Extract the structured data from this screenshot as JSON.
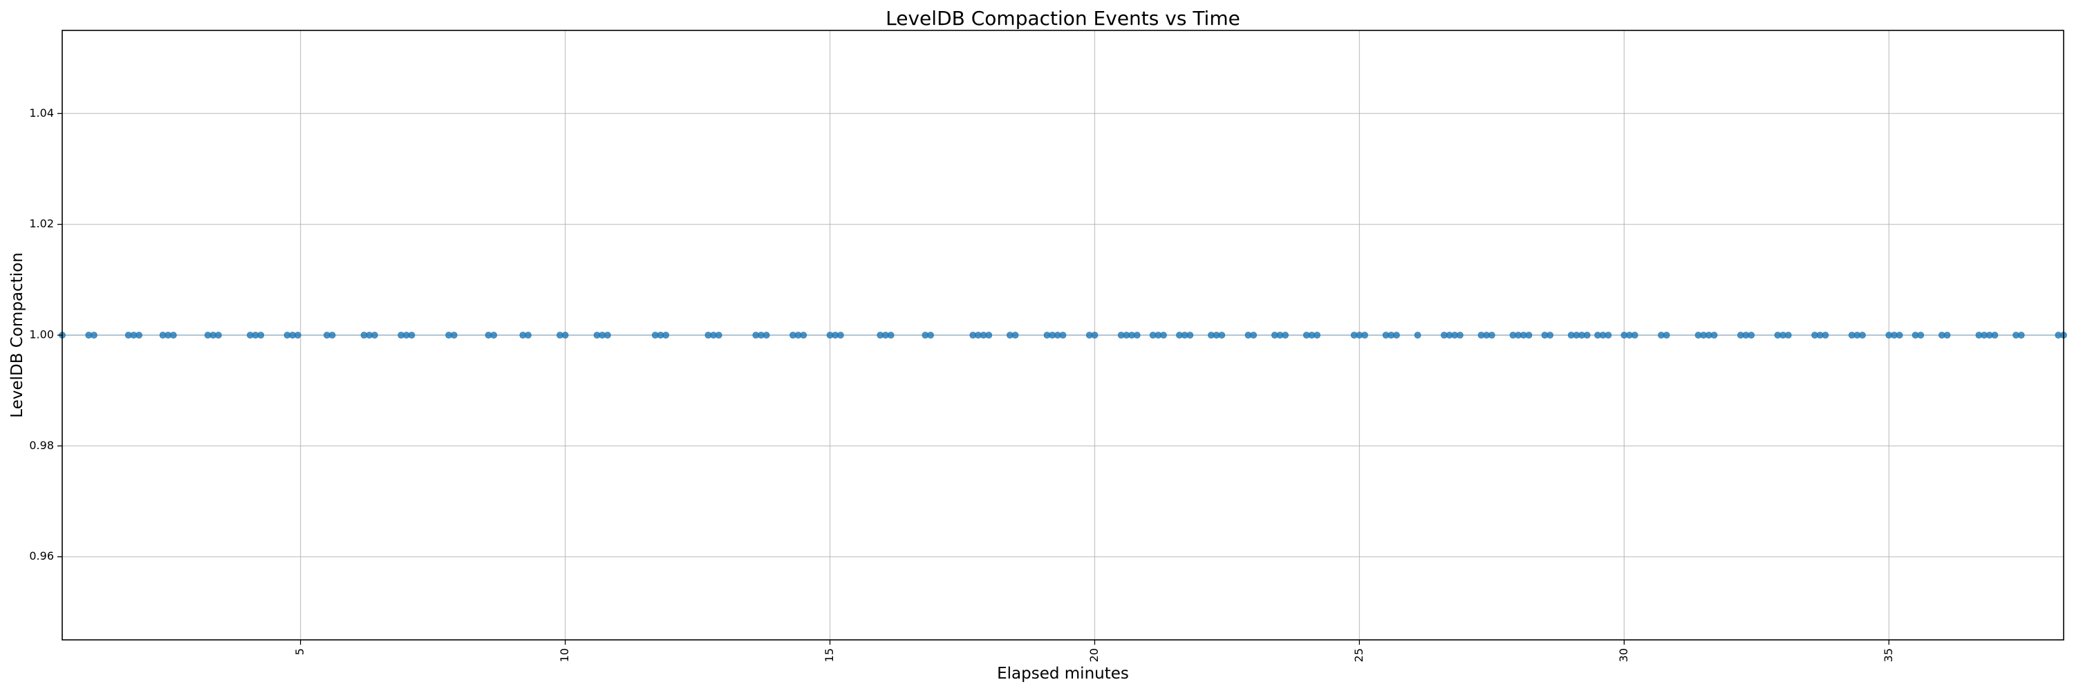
{
  "chart_data": {
    "type": "scatter",
    "title": "LevelDB Compaction Events vs Time",
    "xlabel": "Elapsed minutes",
    "ylabel": "LevelDB Compaction",
    "xlim": [
      0.5,
      38.3
    ],
    "ylim": [
      0.945,
      1.055
    ],
    "x_ticks": [
      5,
      10,
      15,
      20,
      25,
      30,
      35
    ],
    "x_tick_labels": [
      "5",
      "10",
      "15",
      "20",
      "25",
      "30",
      "35"
    ],
    "y_ticks": [
      0.96,
      0.98,
      1.0,
      1.02,
      1.04
    ],
    "y_tick_labels": [
      "0.96",
      "0.98",
      "1.00",
      "1.02",
      "1.04"
    ],
    "grid": true,
    "series": [
      {
        "color": "#1f77b4",
        "y_value": 1.0,
        "x": [
          0.5,
          1.0,
          1.1,
          1.75,
          1.85,
          1.95,
          2.4,
          2.5,
          2.6,
          3.25,
          3.35,
          3.45,
          4.05,
          4.15,
          4.25,
          4.75,
          4.85,
          4.95,
          5.5,
          5.6,
          6.2,
          6.3,
          6.4,
          6.9,
          7.0,
          7.1,
          7.8,
          7.9,
          8.55,
          8.65,
          9.2,
          9.3,
          9.9,
          10.0,
          10.6,
          10.7,
          10.8,
          11.7,
          11.8,
          11.9,
          12.7,
          12.8,
          12.9,
          13.6,
          13.7,
          13.8,
          14.3,
          14.4,
          14.5,
          15.0,
          15.1,
          15.2,
          15.95,
          16.05,
          16.15,
          16.8,
          16.9,
          17.7,
          17.8,
          17.9,
          18.0,
          18.4,
          18.5,
          19.1,
          19.2,
          19.3,
          19.4,
          19.9,
          20.0,
          20.5,
          20.6,
          20.7,
          20.8,
          21.1,
          21.2,
          21.3,
          21.6,
          21.7,
          21.8,
          22.2,
          22.3,
          22.4,
          22.9,
          23.0,
          23.4,
          23.5,
          23.6,
          24.0,
          24.1,
          24.2,
          24.9,
          25.0,
          25.1,
          25.5,
          25.6,
          25.7,
          26.1,
          26.6,
          26.7,
          26.8,
          26.9,
          27.3,
          27.4,
          27.5,
          27.9,
          28.0,
          28.1,
          28.2,
          28.5,
          28.6,
          29.0,
          29.1,
          29.2,
          29.3,
          29.5,
          29.6,
          29.7,
          30.0,
          30.1,
          30.2,
          30.7,
          30.8,
          31.4,
          31.5,
          31.6,
          31.7,
          32.2,
          32.3,
          32.4,
          32.9,
          33.0,
          33.1,
          33.6,
          33.7,
          33.8,
          34.3,
          34.4,
          34.5,
          35.0,
          35.1,
          35.2,
          35.5,
          35.6,
          36.0,
          36.1,
          36.7,
          36.8,
          36.9,
          37.0,
          37.4,
          37.5,
          38.2,
          38.3
        ]
      }
    ]
  }
}
